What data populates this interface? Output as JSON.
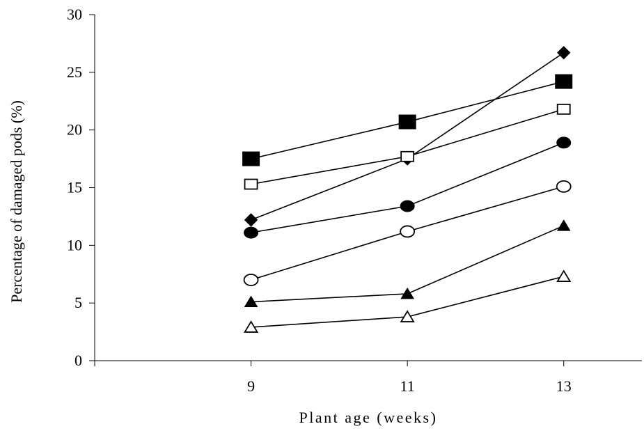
{
  "chart_data": {
    "type": "line",
    "title": "",
    "xlabel": "Plant age (weeks)",
    "ylabel": "Percentage of damaged pods (%)",
    "x": [
      9,
      11,
      13
    ],
    "x_tick_labels": [
      "9",
      "11",
      "13"
    ],
    "xlim": [
      7,
      14
    ],
    "ylim": [
      0,
      30
    ],
    "y_ticks": [
      0,
      5,
      10,
      15,
      20,
      25,
      30
    ],
    "y_tick_labels": [
      "0",
      "5",
      "10",
      "15",
      "20",
      "25",
      "30"
    ],
    "grid": false,
    "legend": "none",
    "series": [
      {
        "marker": "filled-diamond",
        "values": [
          12.2,
          17.5,
          26.7
        ]
      },
      {
        "marker": "filled-square",
        "values": [
          17.5,
          20.7,
          24.2
        ]
      },
      {
        "marker": "open-square",
        "values": [
          15.3,
          17.7,
          21.8
        ]
      },
      {
        "marker": "filled-circle",
        "values": [
          11.1,
          13.4,
          18.9
        ]
      },
      {
        "marker": "open-circle",
        "values": [
          7.0,
          11.2,
          15.1
        ]
      },
      {
        "marker": "filled-triangle",
        "values": [
          5.1,
          5.8,
          11.7
        ]
      },
      {
        "marker": "open-triangle",
        "values": [
          2.9,
          3.8,
          7.3
        ]
      }
    ]
  }
}
